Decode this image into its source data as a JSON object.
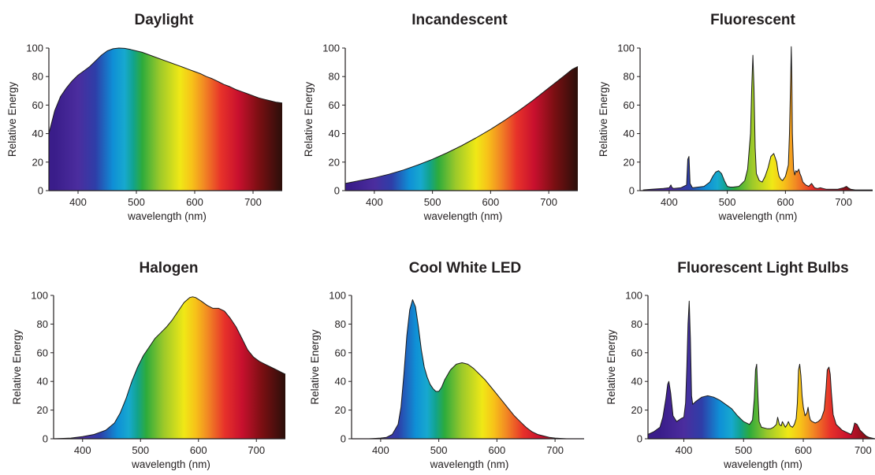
{
  "figure": {
    "spectrum_colors": [
      "#3a1d8a",
      "#4b2d9e",
      "#2e3ea8",
      "#0f8fd6",
      "#17a9cf",
      "#12a38c",
      "#2dab3c",
      "#9cc92a",
      "#f0e816",
      "#f7c219",
      "#f28c23",
      "#e7322a",
      "#c8102e",
      "#7a0f12",
      "#2a0f0a"
    ]
  },
  "chart_data": [
    {
      "type": "area",
      "title": "Daylight",
      "xlabel": "wavelength (nm)",
      "ylabel": "Relative Energy",
      "xlim": [
        350,
        750
      ],
      "ylim": [
        0,
        100
      ],
      "xticks": [
        "400",
        "500",
        "600",
        "700"
      ],
      "yticks": [
        "0",
        "20",
        "40",
        "60",
        "80",
        "100"
      ],
      "series": [
        {
          "x": [
            350,
            360,
            370,
            380,
            390,
            400,
            410,
            420,
            430,
            440,
            450,
            460,
            470,
            480,
            490,
            500,
            510,
            520,
            530,
            540,
            550,
            560,
            570,
            580,
            590,
            600,
            610,
            620,
            630,
            640,
            650,
            660,
            670,
            680,
            690,
            700,
            710,
            720,
            730,
            740,
            750
          ],
          "values": [
            40,
            56,
            66,
            72,
            77,
            81,
            84,
            87,
            91,
            95,
            98,
            99.5,
            100,
            99.8,
            99,
            98,
            97,
            95.5,
            94,
            92.5,
            91,
            89.5,
            88,
            86.5,
            85,
            83.5,
            82,
            80,
            78.5,
            76.5,
            74.5,
            73,
            71,
            69.5,
            68,
            66.5,
            65,
            64,
            63,
            62,
            61.5
          ]
        }
      ]
    },
    {
      "type": "area",
      "title": "Incandescent",
      "xlabel": "wavelength (nm)",
      "ylabel": "Relative Energy",
      "xlim": [
        350,
        750
      ],
      "ylim": [
        0,
        100
      ],
      "xticks": [
        "400",
        "500",
        "600",
        "700"
      ],
      "yticks": [
        "0",
        "20",
        "40",
        "60",
        "80",
        "100"
      ],
      "series": [
        {
          "x": [
            350,
            375,
            400,
            425,
            450,
            475,
            500,
            525,
            550,
            575,
            600,
            625,
            650,
            675,
            700,
            725,
            740,
            750
          ],
          "values": [
            5,
            7,
            9,
            11.5,
            14.5,
            18,
            22,
            26.5,
            31.5,
            37,
            43,
            49.5,
            56.5,
            64,
            72,
            80,
            85,
            87
          ]
        }
      ]
    },
    {
      "type": "area",
      "title": "Fluorescent",
      "xlabel": "wavelength (nm)",
      "ylabel": "Relative Energy",
      "xlim": [
        350,
        750
      ],
      "ylim": [
        0,
        100
      ],
      "xticks": [
        "400",
        "500",
        "600",
        "700"
      ],
      "yticks": [
        "0",
        "20",
        "40",
        "60",
        "80",
        "100"
      ],
      "series": [
        {
          "x": [
            355,
            370,
            390,
            400,
            403,
            405,
            408,
            420,
            430,
            432,
            434,
            436,
            440,
            460,
            470,
            475,
            480,
            485,
            490,
            495,
            500,
            505,
            510,
            520,
            530,
            535,
            540,
            542,
            544,
            546,
            548,
            550,
            555,
            560,
            565,
            570,
            575,
            580,
            585,
            587,
            589,
            592,
            595,
            600,
            605,
            607,
            609,
            610,
            611,
            612,
            614,
            616,
            618,
            620,
            623,
            625,
            627,
            630,
            635,
            640,
            645,
            650,
            655,
            660,
            665,
            670,
            680,
            690,
            700,
            705,
            708,
            712,
            720,
            740,
            750
          ],
          "values": [
            0.5,
            1,
            1.5,
            2,
            4,
            2,
            1.5,
            2,
            4,
            22,
            24,
            5,
            2,
            3,
            6,
            10,
            13,
            14,
            12,
            7,
            3,
            2.5,
            2.5,
            3,
            7,
            15,
            40,
            72,
            95,
            72,
            30,
            12,
            7,
            6,
            10,
            16,
            24,
            26,
            20,
            14,
            10,
            8,
            7,
            10,
            18,
            40,
            78,
            101,
            80,
            40,
            15,
            11,
            14,
            13,
            15,
            12,
            10,
            6,
            4,
            3,
            5,
            2,
            1.5,
            2,
            1.5,
            1,
            1,
            1,
            2,
            3,
            2,
            1,
            0.5,
            0.5,
            0.5
          ]
        }
      ]
    },
    {
      "type": "area",
      "title": "Halogen",
      "xlabel": "wavelength (nm)",
      "ylabel": "Relative Energy",
      "xlim": [
        350,
        750
      ],
      "ylim": [
        0,
        100
      ],
      "xticks": [
        "400",
        "500",
        "600",
        "700"
      ],
      "yticks": [
        "0",
        "20",
        "40",
        "60",
        "80",
        "100"
      ],
      "series": [
        {
          "x": [
            350,
            380,
            400,
            420,
            440,
            455,
            465,
            475,
            485,
            495,
            505,
            515,
            525,
            535,
            545,
            555,
            565,
            575,
            585,
            590,
            595,
            605,
            615,
            625,
            635,
            645,
            655,
            665,
            675,
            685,
            695,
            705,
            715,
            725,
            735,
            745,
            750
          ],
          "values": [
            0,
            0.5,
            1.5,
            3,
            6,
            11,
            18,
            28,
            40,
            50,
            58,
            64,
            70,
            74,
            78,
            83,
            89,
            95,
            98.5,
            99,
            98.5,
            96,
            93,
            91,
            91,
            89,
            84,
            78,
            70,
            62,
            57,
            54,
            52,
            50,
            48,
            46,
            45
          ]
        }
      ]
    },
    {
      "type": "area",
      "title": "Cool White LED",
      "xlabel": "wavelength (nm)",
      "ylabel": "Relative Energy",
      "xlim": [
        350,
        750
      ],
      "ylim": [
        0,
        100
      ],
      "xticks": [
        "400",
        "500",
        "600",
        "700"
      ],
      "yticks": [
        "0",
        "20",
        "40",
        "60",
        "80",
        "100"
      ],
      "series": [
        {
          "x": [
            350,
            380,
            400,
            410,
            420,
            430,
            435,
            440,
            445,
            450,
            455,
            460,
            465,
            470,
            475,
            480,
            485,
            490,
            495,
            500,
            505,
            510,
            520,
            530,
            540,
            550,
            560,
            570,
            580,
            590,
            600,
            610,
            620,
            630,
            640,
            650,
            660,
            670,
            680,
            690,
            700,
            720,
            750
          ],
          "values": [
            0,
            0,
            0.5,
            1,
            3,
            10,
            22,
            45,
            72,
            90,
            97,
            92,
            78,
            62,
            50,
            43,
            38,
            35,
            33,
            33,
            36,
            41,
            48,
            52,
            53,
            52,
            49,
            45,
            41,
            36,
            31,
            26,
            21,
            16,
            12,
            8,
            5,
            3,
            2,
            1,
            0.5,
            0,
            0
          ]
        }
      ]
    },
    {
      "type": "area",
      "title": "Fluorescent Light Bulbs",
      "xlabel": "wavelength (nm)",
      "ylabel": "Relative Energy",
      "xlim": [
        340,
        720
      ],
      "ylim": [
        0,
        100
      ],
      "xticks": [
        "400",
        "500",
        "600",
        "700"
      ],
      "yticks": [
        "0",
        "20",
        "40",
        "60",
        "80",
        "100"
      ],
      "series": [
        {
          "x": [
            340,
            350,
            360,
            365,
            370,
            373,
            375,
            378,
            382,
            388,
            395,
            400,
            403,
            405,
            407,
            409,
            411,
            413,
            415,
            420,
            430,
            440,
            450,
            460,
            470,
            480,
            490,
            500,
            510,
            515,
            518,
            520,
            522,
            524,
            526,
            530,
            540,
            545,
            550,
            555,
            557,
            560,
            563,
            565,
            570,
            573,
            575,
            578,
            582,
            585,
            588,
            590,
            592,
            594,
            596,
            598,
            600,
            603,
            606,
            608,
            610,
            612,
            615,
            620,
            625,
            630,
            635,
            638,
            640,
            643,
            645,
            647,
            650,
            655,
            660,
            665,
            670,
            675,
            680,
            683,
            686,
            690,
            695,
            700,
            705,
            710,
            720
          ],
          "values": [
            3,
            5,
            8,
            15,
            28,
            38,
            40,
            32,
            16,
            12,
            14,
            15,
            25,
            50,
            80,
            96,
            70,
            30,
            24,
            26,
            29,
            30,
            29,
            27,
            24,
            21,
            16,
            12,
            10,
            13,
            28,
            48,
            52,
            30,
            12,
            8,
            7,
            7,
            8,
            10,
            15,
            10,
            9,
            12,
            8,
            10,
            12,
            9,
            8,
            10,
            14,
            25,
            48,
            52,
            44,
            30,
            22,
            16,
            18,
            22,
            16,
            13,
            12,
            11,
            12,
            14,
            20,
            35,
            48,
            50,
            45,
            32,
            17,
            10,
            8,
            6,
            5,
            4,
            3,
            6,
            11,
            10,
            6,
            4,
            2,
            1,
            0
          ]
        }
      ]
    }
  ]
}
